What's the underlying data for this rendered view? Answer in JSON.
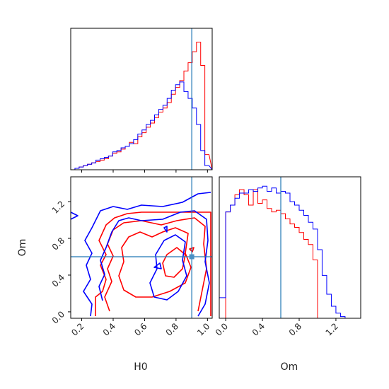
{
  "colors": {
    "series_a": "#ff0000",
    "series_b": "#0000ff",
    "truth": "#1f77b4"
  },
  "chart_data": {
    "type": "corner",
    "parameters": [
      "H0",
      "Om"
    ],
    "truth": {
      "H0": 0.9,
      "Om": 0.6
    },
    "xlabels": {
      "H0": "H0",
      "Om": "Om"
    },
    "ylabels": {
      "Om": "Om"
    },
    "ticks": {
      "H0": [
        "0.2",
        "0.4",
        "0.6",
        "0.8",
        "1.0"
      ],
      "Om": [
        "0.0",
        "0.4",
        "0.8",
        "1.2"
      ],
      "Om_y": [
        "0.0",
        "0.4",
        "0.8",
        "1.2"
      ]
    },
    "ranges": {
      "H0": [
        0.13,
        1.03
      ],
      "Om": [
        -0.07,
        1.47
      ]
    },
    "hist_H0": {
      "bin_edges": [
        0.13,
        0.1567,
        0.1833,
        0.21,
        0.2367,
        0.2633,
        0.29,
        0.3167,
        0.3433,
        0.37,
        0.3967,
        0.4233,
        0.45,
        0.4767,
        0.5033,
        0.53,
        0.5567,
        0.5833,
        0.61,
        0.6367,
        0.6633,
        0.69,
        0.7167,
        0.7433,
        0.77,
        0.7967,
        0.8233,
        0.85,
        0.8767,
        0.9033,
        0.93,
        0.9567,
        0.9833,
        1.01,
        1.03
      ],
      "series": [
        {
          "color": "#ff0000",
          "values": [
            0.0,
            0.01,
            0.02,
            0.03,
            0.04,
            0.05,
            0.06,
            0.07,
            0.08,
            0.1,
            0.12,
            0.13,
            0.15,
            0.17,
            0.2,
            0.19,
            0.24,
            0.27,
            0.31,
            0.34,
            0.38,
            0.42,
            0.45,
            0.49,
            0.55,
            0.6,
            0.65,
            0.72,
            0.78,
            0.86,
            0.93,
            0.76,
            0.11
          ]
        },
        {
          "color": "#0000ff",
          "values": [
            0.0,
            0.01,
            0.02,
            0.03,
            0.04,
            0.05,
            0.07,
            0.08,
            0.09,
            0.1,
            0.13,
            0.14,
            0.16,
            0.17,
            0.19,
            0.22,
            0.26,
            0.29,
            0.33,
            0.36,
            0.4,
            0.44,
            0.47,
            0.52,
            0.58,
            0.62,
            0.64,
            0.57,
            0.52,
            0.45,
            0.33,
            0.14,
            0.03
          ]
        }
      ]
    },
    "hist_Om": {
      "bin_edges": [
        -0.07,
        0.0,
        0.05,
        0.1,
        0.15,
        0.2,
        0.25,
        0.3,
        0.35,
        0.4,
        0.45,
        0.5,
        0.55,
        0.6,
        0.65,
        0.7,
        0.75,
        0.8,
        0.85,
        0.9,
        0.95,
        1.0,
        1.05,
        1.1,
        1.15,
        1.2,
        1.25,
        1.3,
        1.35,
        1.47
      ],
      "series": [
        {
          "color": "#ff0000",
          "values": [
            0.0,
            0.62,
            0.66,
            0.72,
            0.75,
            0.72,
            0.66,
            0.75,
            0.67,
            0.69,
            0.64,
            0.62,
            0.63,
            0.61,
            0.58,
            0.55,
            0.53,
            0.5,
            0.46,
            0.43,
            0.34,
            0.0,
            0.0,
            0.0,
            0.0,
            0.0,
            0.0,
            0.0,
            0.0
          ]
        },
        {
          "color": "#0000ff",
          "values": [
            0.12,
            0.62,
            0.66,
            0.7,
            0.73,
            0.73,
            0.75,
            0.74,
            0.76,
            0.77,
            0.74,
            0.76,
            0.73,
            0.74,
            0.73,
            0.68,
            0.66,
            0.63,
            0.6,
            0.56,
            0.52,
            0.4,
            0.25,
            0.14,
            0.07,
            0.03,
            0.01,
            0.0,
            0.0
          ]
        }
      ]
    }
  }
}
